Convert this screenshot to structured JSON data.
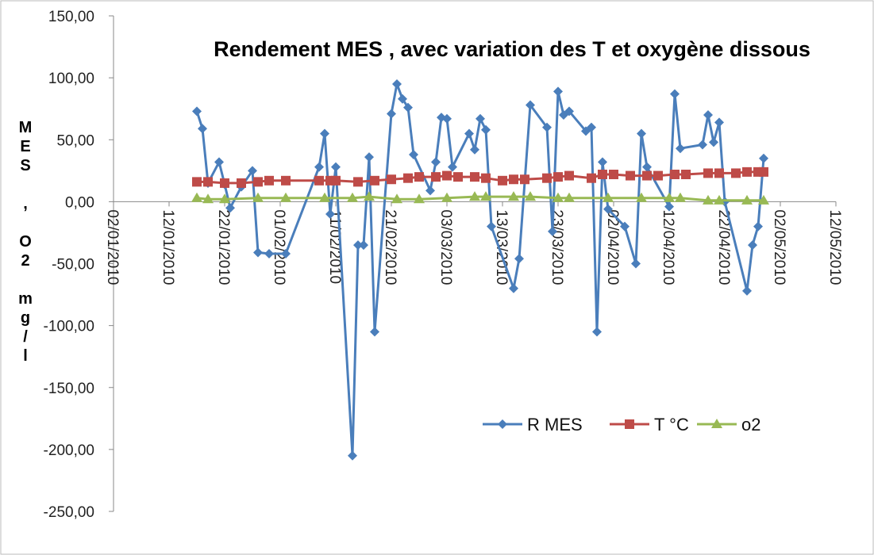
{
  "chart_data": {
    "type": "line",
    "title": "Rendement MES , avec variation des T et oxygène dissous",
    "y_label": "MES , O2 mg/l",
    "xlim": [
      "2010-01-02",
      "2010-05-12"
    ],
    "xticks": [
      {
        "value": "2010-01-02",
        "label": "02/01/2010"
      },
      {
        "value": "2010-01-12",
        "label": "12/01/2010"
      },
      {
        "value": "2010-01-22",
        "label": "22/01/2010"
      },
      {
        "value": "2010-02-01",
        "label": "01/02/2010"
      },
      {
        "value": "2010-02-11",
        "label": "11/02/2010"
      },
      {
        "value": "2010-02-21",
        "label": "21/02/2010"
      },
      {
        "value": "2010-03-03",
        "label": "03/03/2010"
      },
      {
        "value": "2010-03-13",
        "label": "13/03/2010"
      },
      {
        "value": "2010-03-23",
        "label": "23/03/2010"
      },
      {
        "value": "2010-04-02",
        "label": "02/04/2010"
      },
      {
        "value": "2010-04-12",
        "label": "12/04/2010"
      },
      {
        "value": "2010-04-22",
        "label": "22/04/2010"
      },
      {
        "value": "2010-05-02",
        "label": "02/05/2010"
      },
      {
        "value": "2010-05-12",
        "label": "12/05/2010"
      }
    ],
    "ylim": [
      -250,
      150
    ],
    "yticks": [
      {
        "value": -250,
        "label": "-250,00"
      },
      {
        "value": -200,
        "label": "-200,00"
      },
      {
        "value": -150,
        "label": "-150,00"
      },
      {
        "value": -100,
        "label": "-100,00"
      },
      {
        "value": -50,
        "label": "-50,00"
      },
      {
        "value": 0,
        "label": "0,00"
      },
      {
        "value": 50,
        "label": "50,00"
      },
      {
        "value": 100,
        "label": "100,00"
      },
      {
        "value": 150,
        "label": "150,00"
      }
    ],
    "series": [
      {
        "name": "R MES",
        "color": "#4a7ebb",
        "marker": "diamond",
        "x": [
          "2010-01-17",
          "2010-01-18",
          "2010-01-19",
          "2010-01-21",
          "2010-01-22",
          "2010-01-23",
          "2010-01-25",
          "2010-01-27",
          "2010-01-28",
          "2010-01-30",
          "2010-02-02",
          "2010-02-08",
          "2010-02-09",
          "2010-02-10",
          "2010-02-11",
          "2010-02-14",
          "2010-02-15",
          "2010-02-16",
          "2010-02-17",
          "2010-02-18",
          "2010-02-21",
          "2010-02-22",
          "2010-02-23",
          "2010-02-24",
          "2010-02-25",
          "2010-02-28",
          "2010-03-01",
          "2010-03-02",
          "2010-03-03",
          "2010-03-04",
          "2010-03-07",
          "2010-03-08",
          "2010-03-09",
          "2010-03-10",
          "2010-03-11",
          "2010-03-15",
          "2010-03-16",
          "2010-03-18",
          "2010-03-21",
          "2010-03-22",
          "2010-03-23",
          "2010-03-24",
          "2010-03-25",
          "2010-03-28",
          "2010-03-29",
          "2010-03-30",
          "2010-03-31",
          "2010-04-01",
          "2010-04-04",
          "2010-04-06",
          "2010-04-07",
          "2010-04-08",
          "2010-04-12",
          "2010-04-13",
          "2010-04-14",
          "2010-04-18",
          "2010-04-19",
          "2010-04-20",
          "2010-04-21",
          "2010-04-22",
          "2010-04-26",
          "2010-04-27",
          "2010-04-28",
          "2010-04-29"
        ],
        "values": [
          73,
          59,
          15,
          32,
          14,
          -5,
          12,
          25,
          -41,
          -42,
          -42,
          28,
          55,
          -10,
          28,
          -205,
          -35,
          -35,
          36,
          -105,
          71,
          95,
          83,
          76,
          38,
          9,
          32,
          68,
          67,
          28,
          55,
          42,
          67,
          58,
          -20,
          -70,
          -46,
          78,
          60,
          -24,
          89,
          70,
          73,
          57,
          60,
          -105,
          32,
          -6,
          -20,
          -50,
          55,
          28,
          -4,
          87,
          43,
          46,
          70,
          48,
          64,
          0,
          -72,
          -35,
          -20,
          35
        ]
      },
      {
        "name": "T °C",
        "color": "#be4b48",
        "marker": "square",
        "x": [
          "2010-01-17",
          "2010-01-19",
          "2010-01-22",
          "2010-01-25",
          "2010-01-28",
          "2010-01-30",
          "2010-02-02",
          "2010-02-08",
          "2010-02-10",
          "2010-02-11",
          "2010-02-15",
          "2010-02-18",
          "2010-02-21",
          "2010-02-24",
          "2010-02-26",
          "2010-03-01",
          "2010-03-03",
          "2010-03-05",
          "2010-03-08",
          "2010-03-10",
          "2010-03-13",
          "2010-03-15",
          "2010-03-17",
          "2010-03-21",
          "2010-03-23",
          "2010-03-25",
          "2010-03-29",
          "2010-03-31",
          "2010-04-02",
          "2010-04-05",
          "2010-04-08",
          "2010-04-10",
          "2010-04-13",
          "2010-04-15",
          "2010-04-19",
          "2010-04-21",
          "2010-04-24",
          "2010-04-26",
          "2010-04-28",
          "2010-04-29"
        ],
        "values": [
          16,
          16,
          15,
          15,
          16,
          17,
          17,
          17,
          17,
          17,
          16,
          17,
          18,
          19,
          20,
          20,
          21,
          20,
          20,
          19,
          17,
          18,
          18,
          19,
          20,
          21,
          19,
          22,
          22,
          21,
          21,
          21,
          22,
          22,
          23,
          23,
          23,
          24,
          24,
          24
        ]
      },
      {
        "name": "o2",
        "color": "#98b954",
        "marker": "triangle",
        "x": [
          "2010-01-17",
          "2010-01-19",
          "2010-01-22",
          "2010-01-28",
          "2010-02-02",
          "2010-02-09",
          "2010-02-14",
          "2010-02-17",
          "2010-02-22",
          "2010-02-26",
          "2010-03-03",
          "2010-03-08",
          "2010-03-10",
          "2010-03-15",
          "2010-03-18",
          "2010-03-23",
          "2010-03-25",
          "2010-04-01",
          "2010-04-07",
          "2010-04-12",
          "2010-04-14",
          "2010-04-19",
          "2010-04-21",
          "2010-04-26",
          "2010-04-29"
        ],
        "values": [
          3,
          2,
          2,
          3,
          3,
          3,
          3,
          4,
          2,
          2,
          3,
          4,
          4,
          4,
          4,
          3,
          3,
          3,
          3,
          3,
          3,
          1,
          1,
          1,
          1
        ]
      }
    ]
  }
}
